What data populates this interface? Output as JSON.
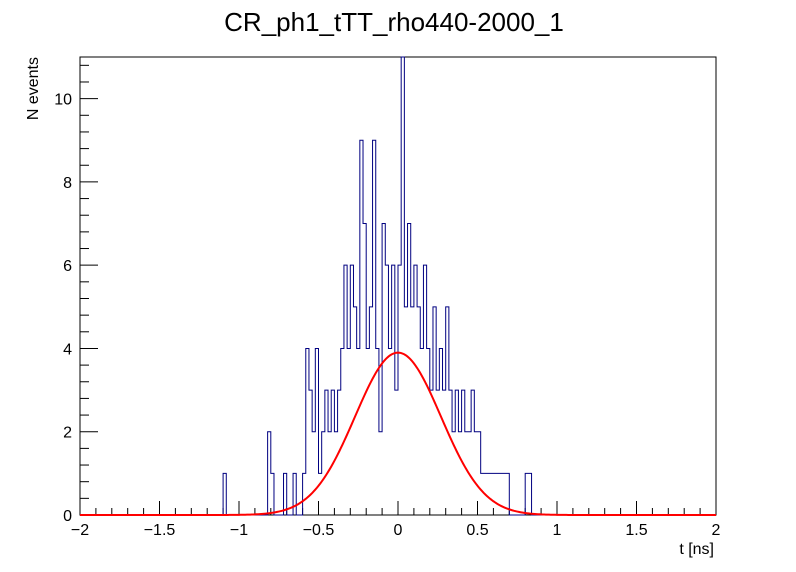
{
  "chart_data": {
    "type": "histogram",
    "title": "CR_ph1_tTT_rho440-2000_1",
    "xlabel": "t [ns]",
    "ylabel": "N events",
    "xlim": [
      -2,
      2
    ],
    "ylim": [
      0,
      11
    ],
    "x_ticks": [
      -2,
      -1.5,
      -1,
      -0.5,
      0,
      0.5,
      1,
      1.5,
      2
    ],
    "x_tick_labels": [
      "−2",
      "−1.5",
      "−1",
      "−0.5",
      "0",
      "0.5",
      "1",
      "1.5",
      "2"
    ],
    "y_ticks": [
      0,
      2,
      4,
      6,
      8,
      10
    ],
    "y_tick_labels": [
      "0",
      "2",
      "4",
      "6",
      "8",
      "10"
    ],
    "grid": false,
    "bin_width": 0.02,
    "histogram_color": "#000080",
    "fit_color": "#ff0000",
    "bins": [
      {
        "x": -1.09,
        "y": 1
      },
      {
        "x": -0.81,
        "y": 2
      },
      {
        "x": -0.79,
        "y": 1
      },
      {
        "x": -0.71,
        "y": 1
      },
      {
        "x": -0.65,
        "y": 1
      },
      {
        "x": -0.59,
        "y": 1
      },
      {
        "x": -0.57,
        "y": 4
      },
      {
        "x": -0.55,
        "y": 3
      },
      {
        "x": -0.53,
        "y": 2
      },
      {
        "x": -0.51,
        "y": 4
      },
      {
        "x": -0.49,
        "y": 1
      },
      {
        "x": -0.47,
        "y": 2
      },
      {
        "x": -0.45,
        "y": 3
      },
      {
        "x": -0.43,
        "y": 2
      },
      {
        "x": -0.41,
        "y": 3
      },
      {
        "x": -0.39,
        "y": 2
      },
      {
        "x": -0.37,
        "y": 3
      },
      {
        "x": -0.35,
        "y": 4
      },
      {
        "x": -0.33,
        "y": 6
      },
      {
        "x": -0.31,
        "y": 4
      },
      {
        "x": -0.29,
        "y": 6
      },
      {
        "x": -0.27,
        "y": 5
      },
      {
        "x": -0.25,
        "y": 4
      },
      {
        "x": -0.23,
        "y": 9
      },
      {
        "x": -0.21,
        "y": 7
      },
      {
        "x": -0.19,
        "y": 4
      },
      {
        "x": -0.17,
        "y": 5
      },
      {
        "x": -0.15,
        "y": 9
      },
      {
        "x": -0.13,
        "y": 4
      },
      {
        "x": -0.11,
        "y": 2
      },
      {
        "x": -0.09,
        "y": 7
      },
      {
        "x": -0.07,
        "y": 6
      },
      {
        "x": -0.05,
        "y": 4
      },
      {
        "x": -0.03,
        "y": 6
      },
      {
        "x": -0.01,
        "y": 3
      },
      {
        "x": 0.01,
        "y": 6
      },
      {
        "x": 0.03,
        "y": 11
      },
      {
        "x": 0.05,
        "y": 5
      },
      {
        "x": 0.07,
        "y": 7
      },
      {
        "x": 0.09,
        "y": 5
      },
      {
        "x": 0.11,
        "y": 6
      },
      {
        "x": 0.13,
        "y": 5
      },
      {
        "x": 0.15,
        "y": 4
      },
      {
        "x": 0.17,
        "y": 6
      },
      {
        "x": 0.19,
        "y": 4
      },
      {
        "x": 0.21,
        "y": 3
      },
      {
        "x": 0.23,
        "y": 5
      },
      {
        "x": 0.25,
        "y": 3
      },
      {
        "x": 0.27,
        "y": 4
      },
      {
        "x": 0.29,
        "y": 3
      },
      {
        "x": 0.31,
        "y": 5
      },
      {
        "x": 0.33,
        "y": 3
      },
      {
        "x": 0.35,
        "y": 2
      },
      {
        "x": 0.37,
        "y": 3
      },
      {
        "x": 0.39,
        "y": 2
      },
      {
        "x": 0.41,
        "y": 3
      },
      {
        "x": 0.43,
        "y": 2
      },
      {
        "x": 0.45,
        "y": 2
      },
      {
        "x": 0.47,
        "y": 3
      },
      {
        "x": 0.49,
        "y": 2
      },
      {
        "x": 0.51,
        "y": 2
      },
      {
        "x": 0.53,
        "y": 1
      },
      {
        "x": 0.55,
        "y": 1
      },
      {
        "x": 0.57,
        "y": 1
      },
      {
        "x": 0.59,
        "y": 1
      },
      {
        "x": 0.61,
        "y": 1
      },
      {
        "x": 0.63,
        "y": 1
      },
      {
        "x": 0.65,
        "y": 1
      },
      {
        "x": 0.67,
        "y": 1
      },
      {
        "x": 0.69,
        "y": 1
      },
      {
        "x": 0.81,
        "y": 1
      },
      {
        "x": 0.83,
        "y": 1
      }
    ],
    "fit": {
      "function": "gaussian",
      "amplitude": 3.9,
      "mean": 0.0,
      "sigma": 0.27
    }
  }
}
